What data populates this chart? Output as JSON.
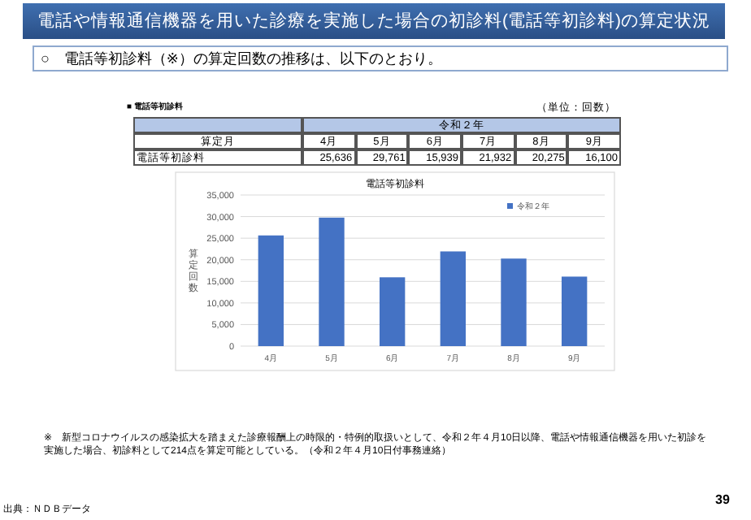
{
  "chart_data": {
    "type": "bar",
    "title": "電話や情報通信機器を用いた診療を実施した場合の初診料(電話等初診料)の算定状況",
    "subtitle": "○　電話等初診料（※）の算定回数の推移は、以下のとおり。",
    "categories": [
      "4月",
      "5月",
      "6月",
      "7月",
      "8月",
      "9月"
    ],
    "series": [
      {
        "name": "令和２年",
        "color": "#4472c4",
        "values": [
          25636,
          29761,
          15939,
          21932,
          20275,
          16100
        ]
      }
    ],
    "ylabel": "算定回数",
    "ylim": [
      0,
      35000
    ],
    "yticks": [
      0,
      {
        "value": 5000,
        "label": "5,000"
      },
      {
        "value": 10000,
        "label": "10,000"
      },
      {
        "value": 15000,
        "label": "15,000"
      },
      {
        "value": 20000,
        "label": "20,000"
      },
      {
        "value": 25000,
        "label": "25,000"
      },
      {
        "value": 30000,
        "label": "30,000"
      },
      {
        "value": 35000,
        "label": "35,000"
      }
    ],
    "grid": "y",
    "legend": "top right",
    "value_labels": [
      "25,636",
      "29,761",
      "15,939",
      "21,932",
      "20,275",
      "16,100"
    ],
    "annotations": [
      "■ 電話等初診料",
      "（単位：回数）",
      "算定月",
      "電話等初診料",
      "電話等初診料",
      "※　新型コロナウイルスの感染拡大を踏まえた診療報酬上の時限的・特例的取扱いとして、令和２年４月10日以降、電話や情報通信機器を用いた初診を実施した場合、初診料として214点を算定可能としている。（令和２年４月10日付事務連絡）",
      "出典：ＮＤＢデータ",
      "39"
    ]
  }
}
